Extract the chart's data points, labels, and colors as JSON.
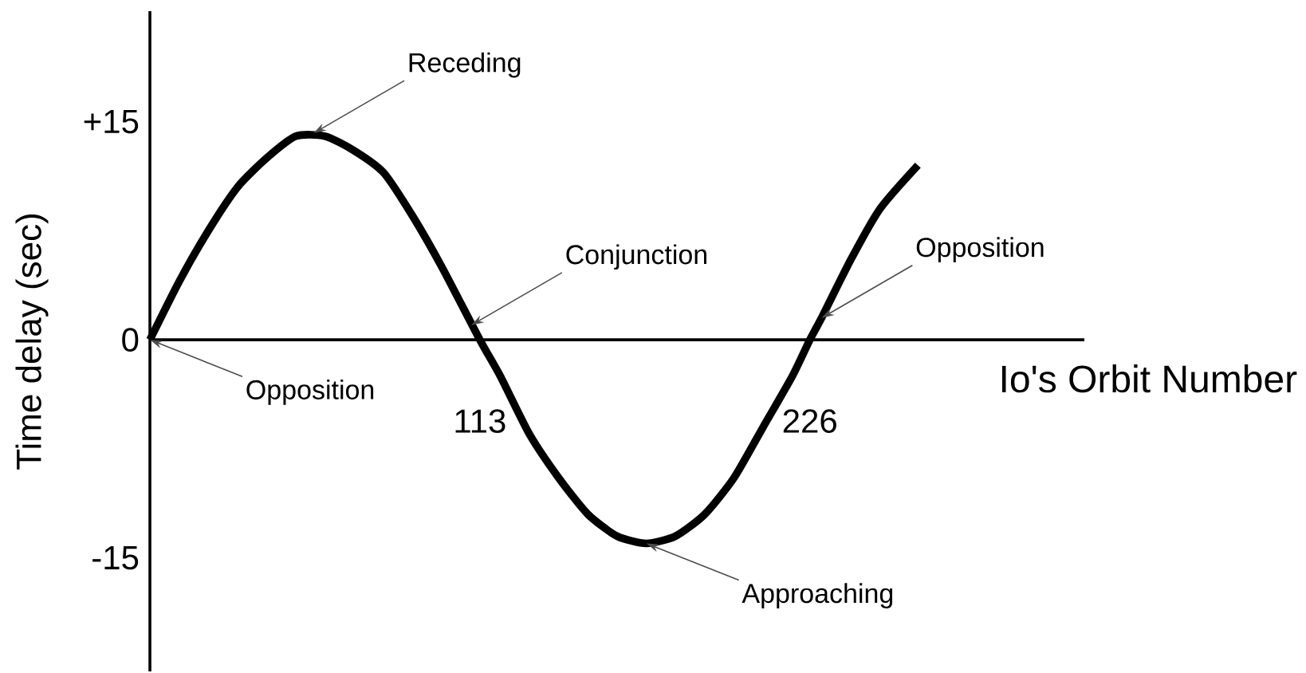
{
  "chart_data": {
    "type": "line",
    "xlabel": "Io's Orbit Number",
    "ylabel": "Time delay (sec)",
    "x": [
      0,
      10,
      20,
      30,
      40,
      50,
      60,
      70,
      80,
      90,
      100,
      113,
      120,
      130,
      140,
      150,
      160,
      170,
      180,
      190,
      200,
      210,
      220,
      226,
      230,
      240,
      250,
      263
    ],
    "values": [
      0,
      4,
      7.5,
      10.5,
      12.5,
      14,
      14,
      13,
      11.5,
      8.5,
      5,
      0,
      -2.5,
      -6.5,
      -9.5,
      -12,
      -13.5,
      -14,
      -13.5,
      -12,
      -9.5,
      -6,
      -2.5,
      0,
      1.5,
      5.5,
      9,
      12
    ],
    "color": "#000000",
    "xlim": [
      0,
      320
    ],
    "ylim": [
      -22.8,
      22.6
    ],
    "xticks": [
      113,
      226
    ],
    "yticks": [
      -15,
      0,
      {
        "value": 15,
        "label": "+15"
      }
    ],
    "annotations": [
      {
        "text": "Receding",
        "x": 56,
        "y": 14.2
      },
      {
        "text": "Conjunction",
        "x": 110,
        "y": 1
      },
      {
        "text": "Opposition",
        "x": 0,
        "y": 0
      },
      {
        "text": "Opposition",
        "x": 230,
        "y": 1.5
      },
      {
        "text": "Approaching",
        "x": 170,
        "y": -14
      }
    ]
  }
}
